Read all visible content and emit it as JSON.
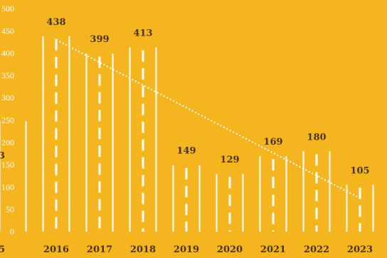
{
  "chart_data": {
    "type": "bar",
    "categories": [
      "2016",
      "2017",
      "2018",
      "2019",
      "2020",
      "2021",
      "2022",
      "2023"
    ],
    "values": [
      438,
      399,
      413,
      149,
      129,
      169,
      180,
      105
    ],
    "cropped_left_bar": {
      "value": 248,
      "label_fragment": "3",
      "category_fragment": "5"
    },
    "title": "",
    "xlabel": "",
    "ylabel": "",
    "ylim": [
      0,
      500
    ],
    "yticks": [
      0,
      50,
      100,
      150,
      200,
      250,
      300,
      350,
      400,
      450,
      500
    ],
    "trendline": {
      "style": "dotted",
      "start_value": 430,
      "end_value": 75
    },
    "grid": false,
    "legend": "none",
    "colors": {
      "background": "#F5B51E",
      "bars": "#FFFFFF",
      "labels": "#4A3410"
    }
  }
}
